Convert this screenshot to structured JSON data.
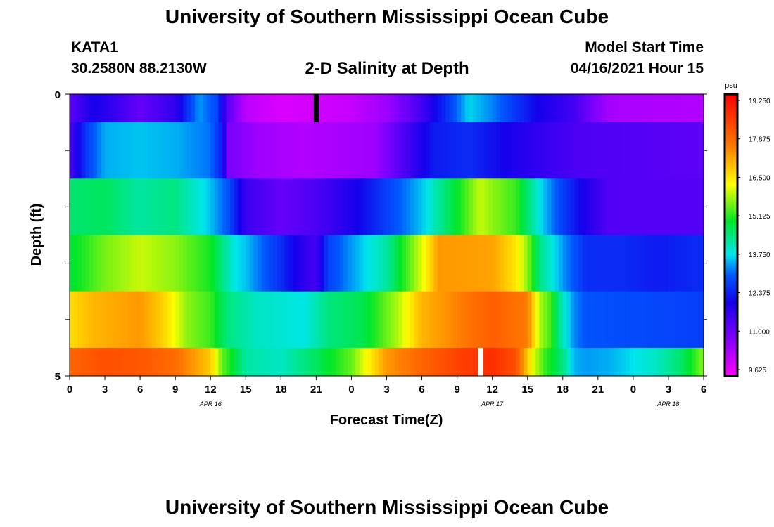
{
  "header": {
    "title": "University of Southern Mississippi Ocean Cube",
    "footer_title": "University of Southern Mississippi Ocean Cube",
    "station": "KATA1",
    "coords": "30.2580N  88.2130W",
    "subtitle": "2-D Salinity at Depth",
    "model_start_label": "Model Start Time",
    "model_start_value": "04/16/2021 Hour 15"
  },
  "chart_data": {
    "type": "heatmap",
    "title": "2-D Salinity at Depth",
    "xlabel": "Forecast Time(Z)",
    "ylabel": "Depth (ft)",
    "x_hours_total": 54,
    "x_tick_labels": [
      "0",
      "3",
      "6",
      "9",
      "12",
      "15",
      "18",
      "21",
      "0",
      "3",
      "6",
      "9",
      "12",
      "15",
      "18",
      "21",
      "0",
      "3",
      "6"
    ],
    "date_labels": [
      {
        "label": "APR 16",
        "at_hour": 12
      },
      {
        "label": "APR 17",
        "at_hour": 36
      },
      {
        "label": "APR 18",
        "at_hour": 51
      }
    ],
    "y_tick_labels": [
      {
        "label": "0",
        "depth": 0
      },
      {
        "label": "5",
        "depth": 5
      }
    ],
    "ylim": [
      0,
      5
    ],
    "depth_layers": 5,
    "colorbar": {
      "unit": "psu",
      "min": 9.625,
      "max": 19.25,
      "tick_labels": [
        "19.250",
        "17.875",
        "16.500",
        "15.125",
        "13.750",
        "12.375",
        "11.000",
        "9.625"
      ]
    },
    "rows": [
      {
        "depth_range": [
          0.0,
          0.5
        ],
        "knots": [
          [
            0,
            11.3
          ],
          [
            2,
            12.1
          ],
          [
            4,
            11.7
          ],
          [
            6,
            11.2
          ],
          [
            9,
            11.8
          ],
          [
            11,
            13.4
          ],
          [
            12.5,
            12.9
          ],
          [
            13.5,
            11.3
          ],
          [
            15,
            10.3
          ],
          [
            18,
            10.0
          ],
          [
            24,
            10.2
          ],
          [
            27,
            10.6
          ],
          [
            30,
            11.6
          ],
          [
            32,
            12.6
          ],
          [
            34,
            13.7
          ],
          [
            36,
            13.3
          ],
          [
            38,
            12.7
          ],
          [
            40,
            12.1
          ],
          [
            43,
            11.6
          ],
          [
            44.5,
            11.0
          ],
          [
            46,
            10.5
          ],
          [
            54,
            10.4
          ]
        ]
      },
      {
        "depth_range": [
          0.5,
          1.5
        ],
        "knots": [
          [
            0,
            11.5
          ],
          [
            1.5,
            12.8
          ],
          [
            3,
            13.5
          ],
          [
            6,
            13.6
          ],
          [
            9,
            13.5
          ],
          [
            12,
            13.2
          ],
          [
            13,
            12.4
          ],
          [
            13.5,
            11.0
          ],
          [
            16,
            10.6
          ],
          [
            20,
            10.4
          ],
          [
            26,
            10.6
          ],
          [
            28,
            11.3
          ],
          [
            31,
            12.4
          ],
          [
            34,
            12.6
          ],
          [
            38,
            12.0
          ],
          [
            43,
            11.5
          ],
          [
            54,
            11.3
          ]
        ]
      },
      {
        "depth_range": [
          1.5,
          2.5
        ],
        "knots": [
          [
            0,
            14.5
          ],
          [
            3,
            14.6
          ],
          [
            6,
            14.2
          ],
          [
            9,
            14.4
          ],
          [
            12,
            13.6
          ],
          [
            13.5,
            13.0
          ],
          [
            15,
            11.7
          ],
          [
            18,
            11.2
          ],
          [
            21,
            11.5
          ],
          [
            24,
            12.0
          ],
          [
            27,
            12.8
          ],
          [
            30,
            13.6
          ],
          [
            33,
            14.9
          ],
          [
            35,
            15.9
          ],
          [
            36,
            15.6
          ],
          [
            38,
            15.2
          ],
          [
            40,
            13.8
          ],
          [
            42,
            12.8
          ],
          [
            44,
            12.0
          ],
          [
            46,
            11.4
          ],
          [
            54,
            11.4
          ]
        ]
      },
      {
        "depth_range": [
          2.5,
          3.5
        ],
        "knots": [
          [
            0,
            14.8
          ],
          [
            3,
            15.5
          ],
          [
            6,
            15.9
          ],
          [
            9,
            15.6
          ],
          [
            12,
            15.0
          ],
          [
            14,
            13.8
          ],
          [
            15,
            13.6
          ],
          [
            18,
            12.6
          ],
          [
            20,
            11.8
          ],
          [
            21,
            11.6
          ],
          [
            22,
            12.8
          ],
          [
            24,
            13.4
          ],
          [
            27,
            14.2
          ],
          [
            30,
            16.0
          ],
          [
            31.5,
            17.2
          ],
          [
            36,
            17.1
          ],
          [
            38,
            16.4
          ],
          [
            39,
            15.6
          ],
          [
            40,
            14.4
          ],
          [
            42,
            13.4
          ],
          [
            44,
            12.6
          ],
          [
            47,
            12.6
          ],
          [
            50,
            12.4
          ],
          [
            54,
            12.6
          ]
        ]
      },
      {
        "depth_range": [
          3.5,
          4.5
        ],
        "knots": [
          [
            0,
            16.5
          ],
          [
            2,
            16.9
          ],
          [
            6,
            17.2
          ],
          [
            8,
            16.6
          ],
          [
            10,
            15.6
          ],
          [
            12,
            15.2
          ],
          [
            13.5,
            14.4
          ],
          [
            16,
            14.0
          ],
          [
            20,
            13.8
          ],
          [
            22,
            14.4
          ],
          [
            25,
            14.7
          ],
          [
            28,
            15.8
          ],
          [
            30,
            16.9
          ],
          [
            34,
            17.6
          ],
          [
            36,
            17.9
          ],
          [
            39,
            17.5
          ],
          [
            40,
            15.8
          ],
          [
            41,
            15.2
          ],
          [
            42,
            14.0
          ],
          [
            43,
            13.3
          ],
          [
            44,
            13.0
          ],
          [
            54,
            12.8
          ]
        ]
      },
      {
        "depth_range": [
          4.5,
          5.0
        ],
        "knots": [
          [
            0,
            17.8
          ],
          [
            3,
            18.1
          ],
          [
            6,
            18.0
          ],
          [
            9,
            17.7
          ],
          [
            12,
            16.7
          ],
          [
            13,
            15.4
          ],
          [
            15,
            14.2
          ],
          [
            18,
            14.0
          ],
          [
            21,
            14.6
          ],
          [
            24,
            15.4
          ],
          [
            27,
            17.2
          ],
          [
            30,
            17.8
          ],
          [
            33,
            18.3
          ],
          [
            36,
            18.6
          ],
          [
            38,
            18.1
          ],
          [
            39.5,
            16.0
          ],
          [
            40.5,
            15.2
          ],
          [
            42,
            14.4
          ],
          [
            43,
            13.5
          ],
          [
            44,
            13.4
          ],
          [
            46,
            13.5
          ],
          [
            50,
            14.0
          ],
          [
            52,
            14.5
          ],
          [
            53,
            15.0
          ],
          [
            54,
            15.6
          ]
        ]
      }
    ],
    "markers": [
      {
        "row": 0,
        "hour": 21,
        "color": "#000000"
      },
      {
        "row": 5,
        "hour": 35,
        "color": "#ffffff"
      }
    ]
  }
}
